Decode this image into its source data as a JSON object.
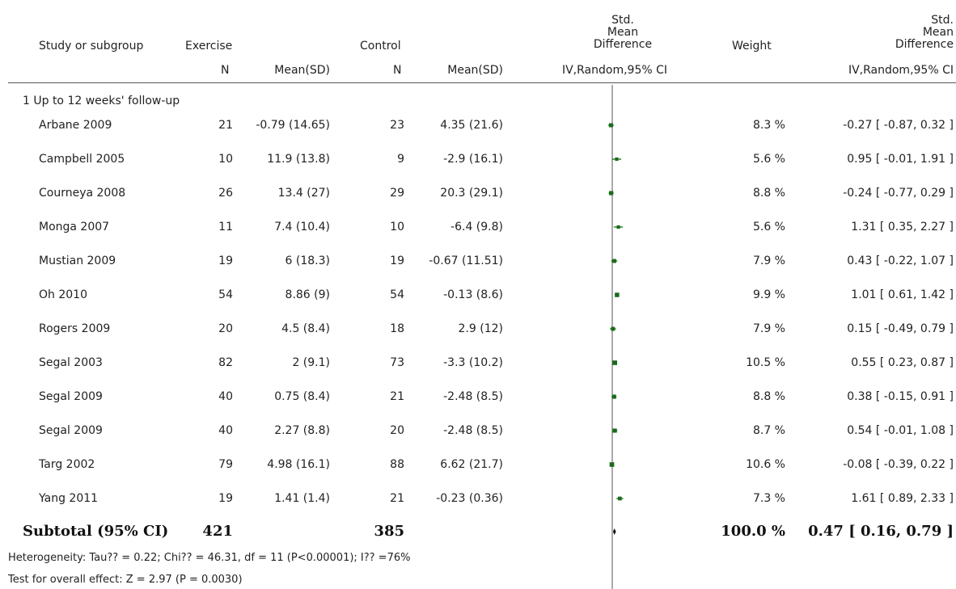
{
  "headers": {
    "study": "Study or subgroup",
    "exercise": "Exercise",
    "control": "Control",
    "smd_top": [
      "Std.",
      "Mean",
      "Difference"
    ],
    "weight": "Weight",
    "smd_right": [
      "Std.",
      "Mean",
      "Difference"
    ],
    "n": "N",
    "mean_sd": "Mean(SD)",
    "method": "IV,Random,95% CI"
  },
  "subgroup_label": "1 Up to 12 weeks' follow-up",
  "studies": [
    {
      "name": "Arbane 2009",
      "ex_n": "21",
      "ex_msd": "-0.79 (14.65)",
      "ct_n": "23",
      "ct_msd": "4.35 (21.6)",
      "weight": "8.3 %",
      "ci": "-0.27 [ -0.87, 0.32 ]"
    },
    {
      "name": "Campbell 2005",
      "ex_n": "10",
      "ex_msd": "11.9 (13.8)",
      "ct_n": "9",
      "ct_msd": "-2.9 (16.1)",
      "weight": "5.6 %",
      "ci": "0.95 [ -0.01, 1.91 ]"
    },
    {
      "name": "Courneya 2008",
      "ex_n": "26",
      "ex_msd": "13.4 (27)",
      "ct_n": "29",
      "ct_msd": "20.3 (29.1)",
      "weight": "8.8 %",
      "ci": "-0.24 [ -0.77, 0.29 ]"
    },
    {
      "name": "Monga 2007",
      "ex_n": "11",
      "ex_msd": "7.4 (10.4)",
      "ct_n": "10",
      "ct_msd": "-6.4 (9.8)",
      "weight": "5.6 %",
      "ci": "1.31 [ 0.35, 2.27 ]"
    },
    {
      "name": "Mustian 2009",
      "ex_n": "19",
      "ex_msd": "6 (18.3)",
      "ct_n": "19",
      "ct_msd": "-0.67 (11.51)",
      "weight": "7.9 %",
      "ci": "0.43 [ -0.22, 1.07 ]"
    },
    {
      "name": "Oh 2010",
      "ex_n": "54",
      "ex_msd": "8.86 (9)",
      "ct_n": "54",
      "ct_msd": "-0.13 (8.6)",
      "weight": "9.9 %",
      "ci": "1.01 [ 0.61, 1.42 ]"
    },
    {
      "name": "Rogers 2009",
      "ex_n": "20",
      "ex_msd": "4.5 (8.4)",
      "ct_n": "18",
      "ct_msd": "2.9 (12)",
      "weight": "7.9 %",
      "ci": "0.15 [ -0.49, 0.79 ]"
    },
    {
      "name": "Segal 2003",
      "ex_n": "82",
      "ex_msd": "2 (9.1)",
      "ct_n": "73",
      "ct_msd": "-3.3 (10.2)",
      "weight": "10.5 %",
      "ci": "0.55 [ 0.23, 0.87 ]"
    },
    {
      "name": "Segal 2009",
      "ex_n": "40",
      "ex_msd": "0.75 (8.4)",
      "ct_n": "21",
      "ct_msd": "-2.48 (8.5)",
      "weight": "8.8 %",
      "ci": "0.38 [ -0.15, 0.91 ]"
    },
    {
      "name": "Segal 2009",
      "ex_n": "40",
      "ex_msd": "2.27 (8.8)",
      "ct_n": "20",
      "ct_msd": "-2.48 (8.5)",
      "weight": "8.7 %",
      "ci": "0.54 [ -0.01, 1.08 ]"
    },
    {
      "name": "Targ 2002",
      "ex_n": "79",
      "ex_msd": "4.98 (16.1)",
      "ct_n": "88",
      "ct_msd": "6.62 (21.7)",
      "weight": "10.6 %",
      "ci": "-0.08 [ -0.39, 0.22 ]"
    },
    {
      "name": "Yang 2011",
      "ex_n": "19",
      "ex_msd": "1.41 (1.4)",
      "ct_n": "21",
      "ct_msd": "-0.23 (0.36)",
      "weight": "7.3 %",
      "ci": "1.61 [ 0.89, 2.33 ]"
    }
  ],
  "subtotal": {
    "label": "Subtotal (95% CI)",
    "ex_n": "421",
    "ct_n": "385",
    "weight": "100.0 %",
    "ci": "0.47 [ 0.16, 0.79 ]"
  },
  "heterogeneity": "Heterogeneity: Tau?? = 0.22; Chi?? = 46.31, df = 11 (P<0.00001); I?? =76%",
  "overall_effect": "Test for overall effect: Z = 2.97 (P = 0.0030)",
  "chart_data": {
    "type": "forest",
    "xlabel": "",
    "ylabel": "",
    "null_line": 0,
    "marker_color": "#1a6b1a",
    "studies": [
      {
        "name": "Arbane 2009",
        "smd": -0.27,
        "lo": -0.87,
        "hi": 0.32,
        "weight": 8.3
      },
      {
        "name": "Campbell 2005",
        "smd": 0.95,
        "lo": -0.01,
        "hi": 1.91,
        "weight": 5.6
      },
      {
        "name": "Courneya 2008",
        "smd": -0.24,
        "lo": -0.77,
        "hi": 0.29,
        "weight": 8.8
      },
      {
        "name": "Monga 2007",
        "smd": 1.31,
        "lo": 0.35,
        "hi": 2.27,
        "weight": 5.6
      },
      {
        "name": "Mustian 2009",
        "smd": 0.43,
        "lo": -0.22,
        "hi": 1.07,
        "weight": 7.9
      },
      {
        "name": "Oh 2010",
        "smd": 1.01,
        "lo": 0.61,
        "hi": 1.42,
        "weight": 9.9
      },
      {
        "name": "Rogers 2009",
        "smd": 0.15,
        "lo": -0.49,
        "hi": 0.79,
        "weight": 7.9
      },
      {
        "name": "Segal 2003",
        "smd": 0.55,
        "lo": 0.23,
        "hi": 0.87,
        "weight": 10.5
      },
      {
        "name": "Segal 2009",
        "smd": 0.38,
        "lo": -0.15,
        "hi": 0.91,
        "weight": 8.8
      },
      {
        "name": "Segal 2009",
        "smd": 0.54,
        "lo": -0.01,
        "hi": 1.08,
        "weight": 8.7
      },
      {
        "name": "Targ 2002",
        "smd": -0.08,
        "lo": -0.39,
        "hi": 0.22,
        "weight": 10.6
      },
      {
        "name": "Yang 2011",
        "smd": 1.61,
        "lo": 0.89,
        "hi": 2.33,
        "weight": 7.3
      }
    ],
    "subtotal": {
      "smd": 0.47,
      "lo": 0.16,
      "hi": 0.79
    }
  }
}
